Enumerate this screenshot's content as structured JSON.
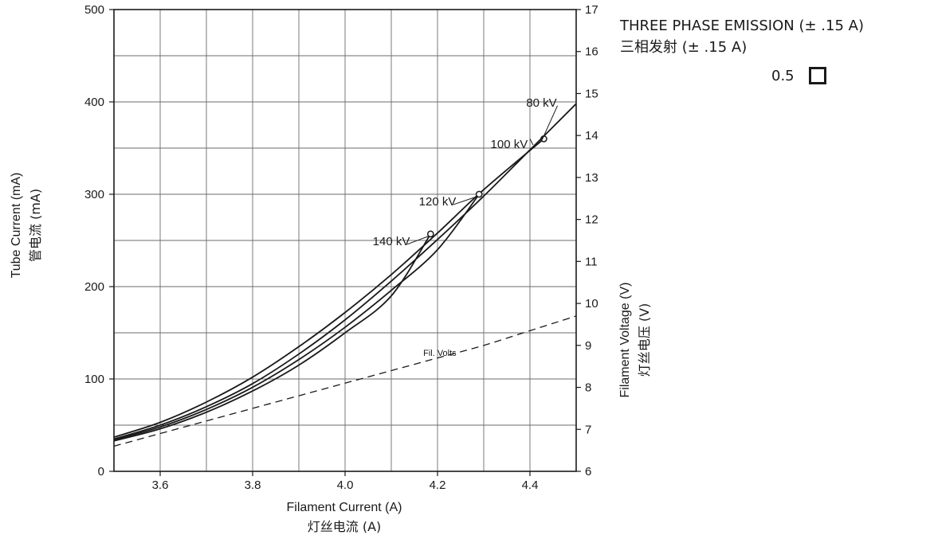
{
  "legend": {
    "title": "THREE PHASE EMISSION (± .15 A)",
    "subtitle": "三相发射 (± .15 A)",
    "focal_spot_value": "0.5",
    "swatch_color": "#1a1a1a"
  },
  "chart_data": {
    "type": "line",
    "xlabel": "Filament Current (A)",
    "xlabel_cn": "灯丝电流 (A)",
    "ylabel": "Tube Current (mA)",
    "ylabel_cn": "管电流 (mA)",
    "y2label": "Filament Voltage (V)",
    "y2label_cn": "灯丝电压 (V)",
    "xlim": [
      3.5,
      4.5
    ],
    "ylim": [
      0,
      500
    ],
    "y2lim": [
      6,
      17
    ],
    "x_minor_step": 0.1,
    "y_minor_step": 50,
    "x_ticks": [
      "3.6",
      "3.8",
      "4.0",
      "4.2",
      "4.4"
    ],
    "y_ticks": [
      "0",
      "100",
      "200",
      "300",
      "400",
      "500"
    ],
    "y2_ticks": [
      "6",
      "7",
      "8",
      "9",
      "10",
      "11",
      "12",
      "13",
      "14",
      "15",
      "16",
      "17"
    ],
    "grid": true,
    "series": [
      {
        "name": "80 kV",
        "x": [
          3.5,
          3.6,
          3.7,
          3.8,
          3.9,
          4.0,
          4.1,
          4.2,
          4.3,
          4.43
        ],
        "y": [
          37,
          53,
          75,
          102,
          135,
          172,
          213,
          258,
          305,
          360
        ],
        "end_marker": true,
        "label_at": [
          4.425,
          395
        ]
      },
      {
        "name": "100 kV",
        "x": [
          3.5,
          3.6,
          3.7,
          3.8,
          3.9,
          4.0,
          4.1,
          4.2,
          4.3,
          4.4,
          4.5
        ],
        "y": [
          35,
          50,
          70,
          95,
          127,
          164,
          206,
          251,
          298,
          348,
          398
        ],
        "end_marker": false,
        "label_at": [
          4.355,
          350
        ]
      },
      {
        "name": "120 kV",
        "x": [
          3.5,
          3.6,
          3.7,
          3.8,
          3.9,
          4.0,
          4.1,
          4.2,
          4.29
        ],
        "y": [
          34,
          48,
          67,
          91,
          121,
          156,
          196,
          240,
          300
        ],
        "end_marker": true,
        "label_at": [
          4.2,
          288
        ]
      },
      {
        "name": "140 kV",
        "x": [
          3.5,
          3.6,
          3.7,
          3.8,
          3.9,
          4.0,
          4.1,
          4.185
        ],
        "y": [
          33,
          46,
          64,
          87,
          115,
          150,
          190,
          257
        ],
        "end_marker": true,
        "label_at": [
          4.1,
          245
        ]
      },
      {
        "name": "Fil. Volts",
        "axis": "right",
        "dashed": true,
        "x": [
          3.5,
          3.6,
          3.7,
          3.8,
          3.9,
          4.0,
          4.1,
          4.2,
          4.3,
          4.4,
          4.5
        ],
        "y": [
          6.6,
          6.9,
          7.2,
          7.5,
          7.8,
          8.1,
          8.4,
          8.7,
          9.0,
          9.35,
          9.7
        ],
        "label_at": [
          4.205,
          8.75
        ]
      }
    ]
  }
}
